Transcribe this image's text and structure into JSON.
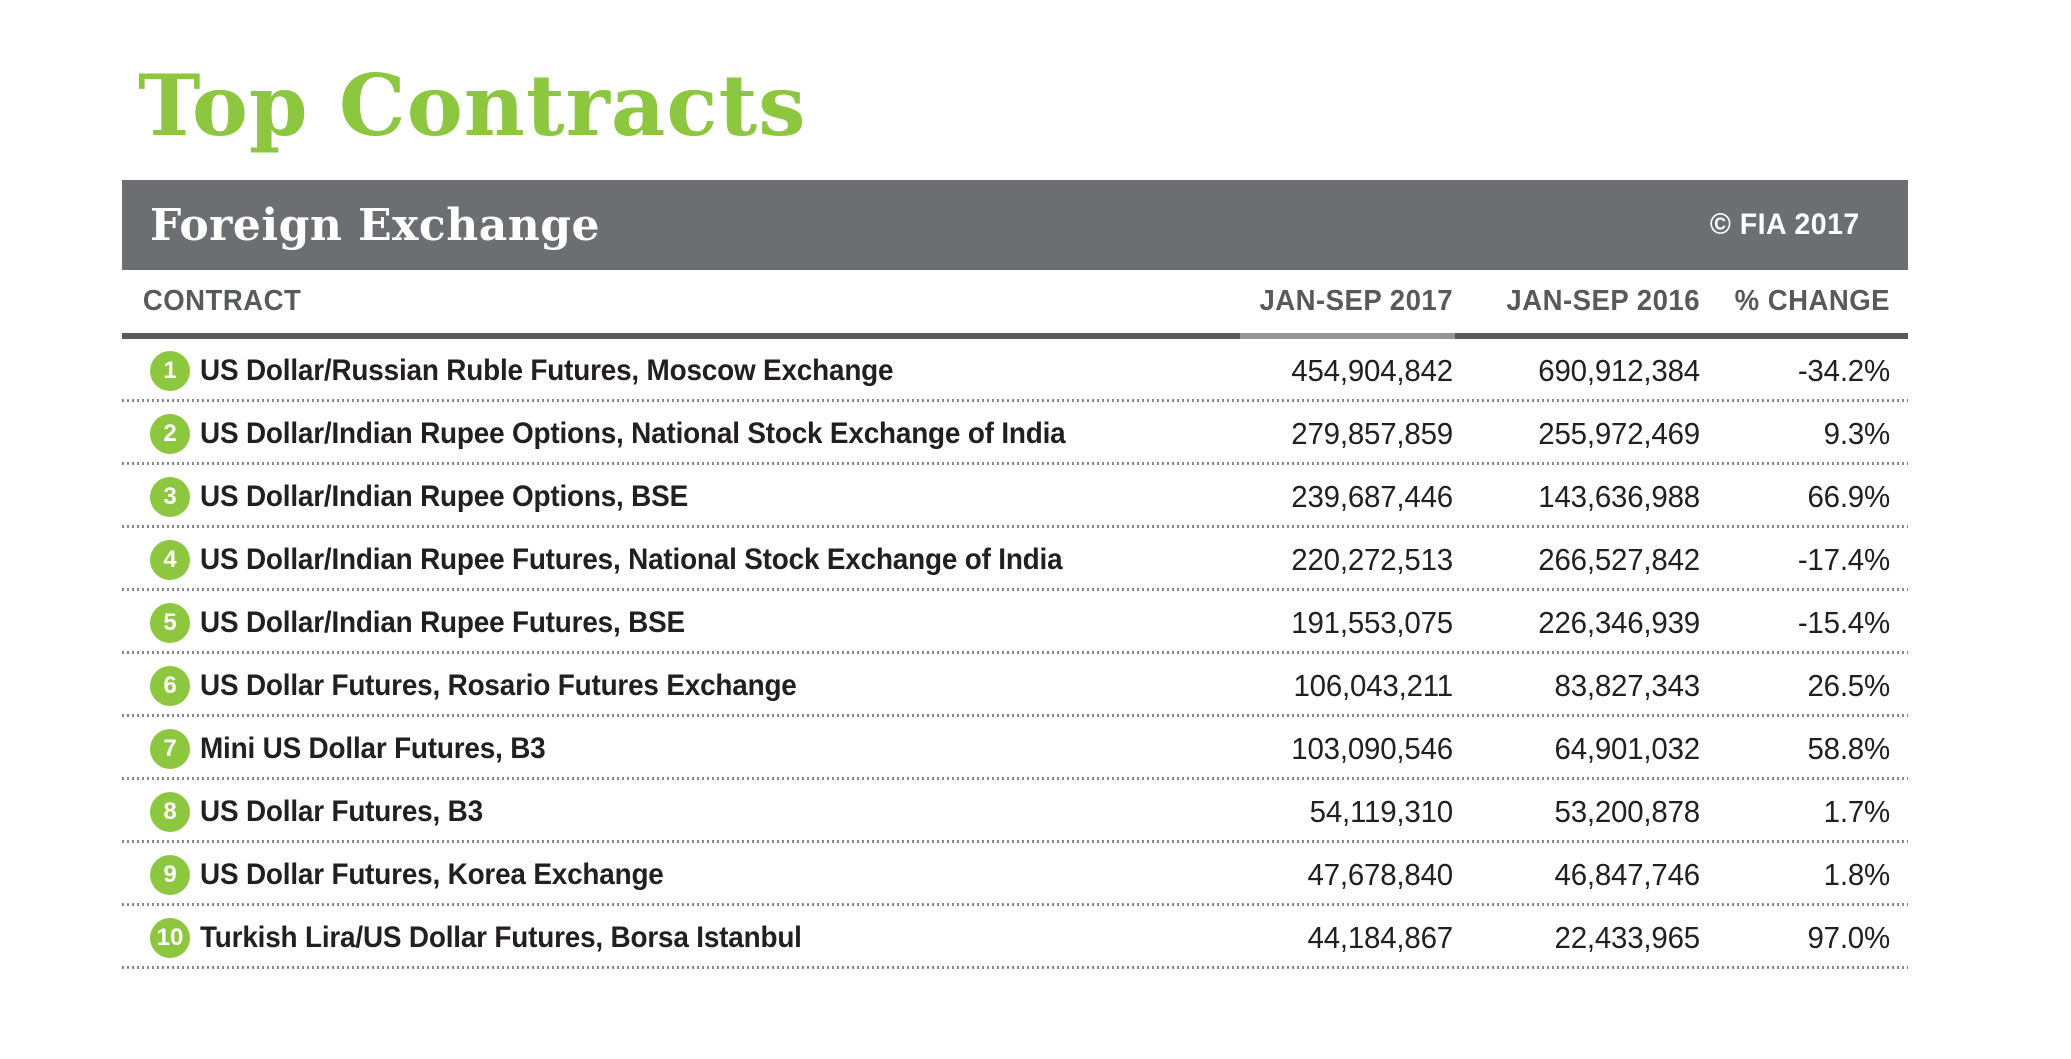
{
  "page": {
    "title": "Top Contracts",
    "copyright": "© FIA 2017"
  },
  "table": {
    "section_title": "Foreign Exchange",
    "columns": [
      "CONTRACT",
      "JAN-SEP 2017",
      "JAN-SEP 2016",
      "% CHANGE"
    ],
    "rows": [
      {
        "rank": "1",
        "contract": "US Dollar/Russian Ruble Futures, Moscow Exchange",
        "jan_sep_2017": "454,904,842",
        "jan_sep_2016": "690,912,384",
        "pct_change": "-34.2%"
      },
      {
        "rank": "2",
        "contract": "US Dollar/Indian Rupee Options, National Stock Exchange of India",
        "jan_sep_2017": "279,857,859",
        "jan_sep_2016": "255,972,469",
        "pct_change": "9.3%"
      },
      {
        "rank": "3",
        "contract": "US Dollar/Indian Rupee Options, BSE",
        "jan_sep_2017": "239,687,446",
        "jan_sep_2016": "143,636,988",
        "pct_change": "66.9%"
      },
      {
        "rank": "4",
        "contract": "US Dollar/Indian Rupee Futures, National Stock Exchange of India",
        "jan_sep_2017": "220,272,513",
        "jan_sep_2016": "266,527,842",
        "pct_change": "-17.4%"
      },
      {
        "rank": "5",
        "contract": "US Dollar/Indian Rupee Futures, BSE",
        "jan_sep_2017": "191,553,075",
        "jan_sep_2016": "226,346,939",
        "pct_change": "-15.4%"
      },
      {
        "rank": "6",
        "contract": "US Dollar Futures, Rosario Futures Exchange",
        "jan_sep_2017": "106,043,211",
        "jan_sep_2016": "83,827,343",
        "pct_change": "26.5%"
      },
      {
        "rank": "7",
        "contract": "Mini US Dollar Futures, B3",
        "jan_sep_2017": "103,090,546",
        "jan_sep_2016": "64,901,032",
        "pct_change": "58.8%"
      },
      {
        "rank": "8",
        "contract": "US Dollar Futures, B3",
        "jan_sep_2017": "54,119,310",
        "jan_sep_2016": "53,200,878",
        "pct_change": "1.7%"
      },
      {
        "rank": "9",
        "contract": "US Dollar Futures, Korea Exchange",
        "jan_sep_2017": "47,678,840",
        "jan_sep_2016": "46,847,746",
        "pct_change": "1.8%"
      },
      {
        "rank": "10",
        "contract": "Turkish Lira/US Dollar Futures, Borsa Istanbul",
        "jan_sep_2017": "44,184,867",
        "jan_sep_2016": "22,433,965",
        "pct_change": "97.0%"
      }
    ]
  },
  "colors": {
    "accent_green": "#8dc63f",
    "bar_gray": "#6d6e71",
    "header_gray": "#58595b",
    "rule_light_segment": "#939598",
    "text_ink": "#231f20",
    "dotted_divider": "#87898c"
  }
}
